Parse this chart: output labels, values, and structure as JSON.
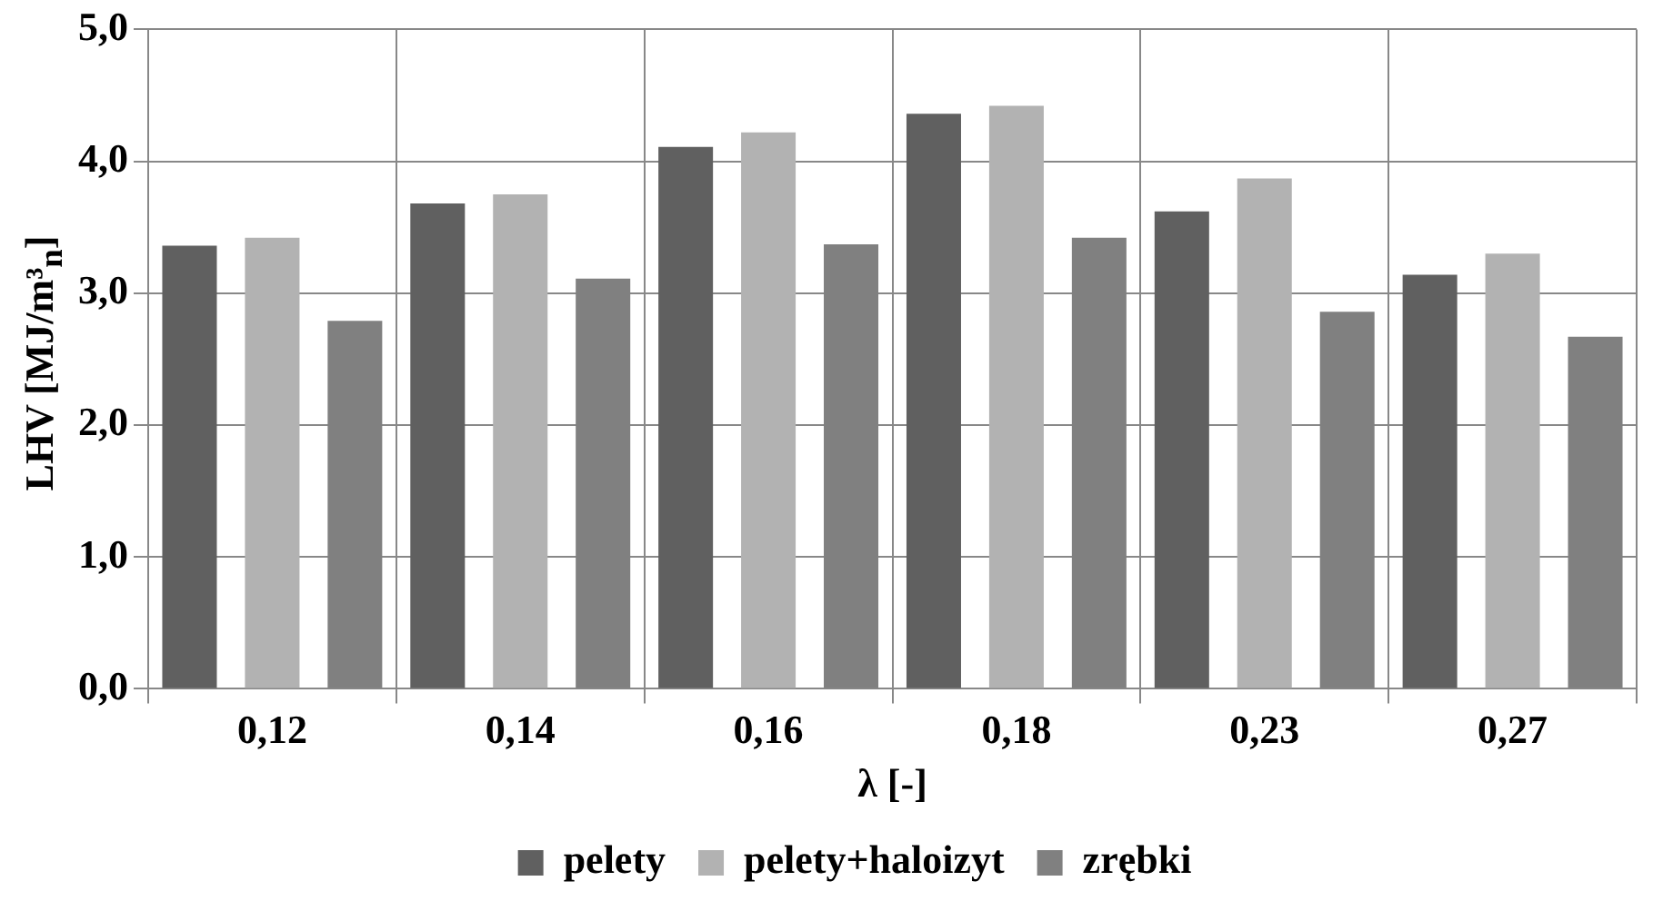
{
  "chart_data": {
    "type": "bar",
    "xlabel": "λ [-]",
    "ylabel": "LHV [MJ/m³$_{n}$]",
    "categories": [
      "0,12",
      "0,14",
      "0,16",
      "0,18",
      "0,23",
      "0,27"
    ],
    "series": [
      {
        "name": "pelety",
        "color": "#606060",
        "values": [
          3.36,
          3.68,
          4.11,
          4.36,
          3.62,
          3.14
        ]
      },
      {
        "name": "pelety+haloizyt",
        "color": "#b2b2b2",
        "values": [
          3.42,
          3.75,
          4.22,
          4.42,
          3.87,
          3.3
        ]
      },
      {
        "name": "zrębki",
        "color": "#808080",
        "values": [
          2.79,
          3.11,
          3.37,
          3.42,
          2.86,
          2.67
        ]
      }
    ],
    "ylim": [
      0,
      5
    ],
    "yticks": [
      {
        "value": 0,
        "label": "0,0"
      },
      {
        "value": 1,
        "label": "1,0"
      },
      {
        "value": 2,
        "label": "2,0"
      },
      {
        "value": 3,
        "label": "3,0"
      },
      {
        "value": 4,
        "label": "4,0"
      },
      {
        "value": 5,
        "label": "5,0"
      }
    ],
    "grid": true,
    "legend": "bottom"
  }
}
